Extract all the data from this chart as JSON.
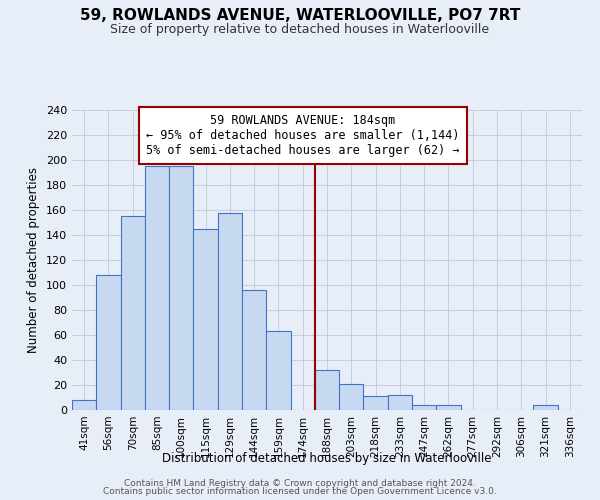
{
  "title": "59, ROWLANDS AVENUE, WATERLOOVILLE, PO7 7RT",
  "subtitle": "Size of property relative to detached houses in Waterlooville",
  "xlabel": "Distribution of detached houses by size in Waterlooville",
  "ylabel": "Number of detached properties",
  "bin_labels": [
    "41sqm",
    "56sqm",
    "70sqm",
    "85sqm",
    "100sqm",
    "115sqm",
    "129sqm",
    "144sqm",
    "159sqm",
    "174sqm",
    "188sqm",
    "203sqm",
    "218sqm",
    "233sqm",
    "247sqm",
    "262sqm",
    "277sqm",
    "292sqm",
    "306sqm",
    "321sqm",
    "336sqm"
  ],
  "bar_heights": [
    8,
    108,
    155,
    195,
    195,
    145,
    158,
    96,
    63,
    0,
    32,
    21,
    11,
    12,
    4,
    4,
    0,
    0,
    0,
    4,
    0
  ],
  "bar_color": "#c6d9f0",
  "bar_edge_color": "#4472c4",
  "ylim": [
    0,
    240
  ],
  "yticks": [
    0,
    20,
    40,
    60,
    80,
    100,
    120,
    140,
    160,
    180,
    200,
    220,
    240
  ],
  "vline_x_idx": 10,
  "vline_color": "#990000",
  "annotation_title": "59 ROWLANDS AVENUE: 184sqm",
  "annotation_line1": "← 95% of detached houses are smaller (1,144)",
  "annotation_line2": "5% of semi-detached houses are larger (62) →",
  "annotation_box_color": "#ffffff",
  "annotation_box_edge": "#990000",
  "footer1": "Contains HM Land Registry data © Crown copyright and database right 2024.",
  "footer2": "Contains public sector information licensed under the Open Government Licence v3.0.",
  "background_color": "#e8eef8",
  "plot_bg_color": "#e8eef8",
  "grid_color": "#c0c8d8",
  "title_fontsize": 11,
  "subtitle_fontsize": 9
}
